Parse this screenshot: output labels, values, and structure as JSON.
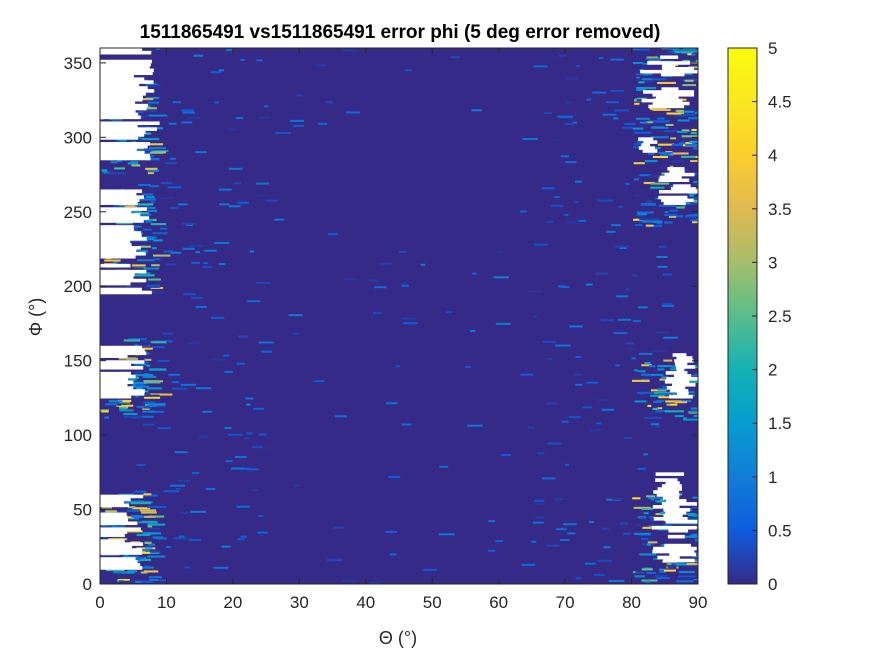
{
  "chart_data": {
    "type": "heatmap",
    "title": "1511865491 vs1511865491 error phi (5 deg error removed)",
    "xlabel": "Θ (°)",
    "ylabel": "Φ (°)",
    "xlim": [
      0,
      90
    ],
    "ylim": [
      0,
      360
    ],
    "xticks": [
      "0",
      "10",
      "20",
      "30",
      "40",
      "50",
      "60",
      "70",
      "80",
      "90"
    ],
    "yticks": [
      "0",
      "50",
      "100",
      "150",
      "200",
      "250",
      "300",
      "350"
    ],
    "colormap": "parula",
    "clim": [
      0,
      5
    ],
    "colorbar_ticks": [
      "0",
      "0.5",
      "1",
      "1.5",
      "2",
      "2.5",
      "3",
      "3.5",
      "4",
      "4.5",
      "5"
    ],
    "background_value": 0,
    "background_color": "#352a87",
    "missing_color": "#ffffff",
    "missing_regions": [
      {
        "theta": [
          0,
          6.5
        ],
        "phi": [
          10,
          60
        ]
      },
      {
        "theta": [
          0,
          7
        ],
        "phi": [
          125,
          160
        ]
      },
      {
        "theta": [
          0,
          8
        ],
        "phi": [
          195,
          265
        ]
      },
      {
        "theta": [
          0,
          9
        ],
        "phi": [
          285,
          360
        ]
      },
      {
        "theta": [
          83,
          90
        ],
        "phi": [
          15,
          75
        ]
      },
      {
        "theta": [
          85,
          90
        ],
        "phi": [
          125,
          155
        ]
      },
      {
        "theta": [
          84,
          90
        ],
        "phi": [
          255,
          280
        ]
      },
      {
        "theta": [
          81,
          84
        ],
        "phi": [
          290,
          300
        ]
      },
      {
        "theta": [
          81,
          90
        ],
        "phi": [
          320,
          355
        ]
      }
    ],
    "high_error_bands": [
      {
        "theta": [
          0,
          8
        ],
        "phi": [
          0,
          60
        ],
        "max_value": 4.5
      },
      {
        "theta": [
          0,
          8
        ],
        "phi": [
          110,
          165
        ],
        "max_value": 4.5
      },
      {
        "theta": [
          0,
          8
        ],
        "phi": [
          195,
          265
        ],
        "max_value": 4.3
      },
      {
        "theta": [
          0,
          8
        ],
        "phi": [
          275,
          345
        ],
        "max_value": 4.5
      },
      {
        "theta": [
          80,
          90
        ],
        "phi": [
          0,
          60
        ],
        "max_value": 4.5
      },
      {
        "theta": [
          80,
          90
        ],
        "phi": [
          110,
          150
        ],
        "max_value": 4.3
      },
      {
        "theta": [
          80,
          90
        ],
        "phi": [
          240,
          360
        ],
        "max_value": 4.5
      }
    ]
  }
}
